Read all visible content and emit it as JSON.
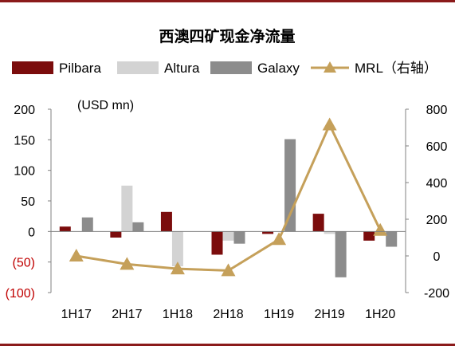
{
  "chart_data": {
    "type": "bar",
    "title": "西澳四矿现金净流量",
    "unit_label": "(USD mn)",
    "categories": [
      "1H17",
      "2H17",
      "1H18",
      "2H18",
      "1H19",
      "2H19",
      "1H20"
    ],
    "left_axis": {
      "ylim": [
        -100,
        200
      ],
      "ticks": [
        "200",
        "150",
        "100",
        "50",
        "0",
        "(50)",
        "(100)"
      ],
      "tick_values": [
        200,
        150,
        100,
        50,
        0,
        -50,
        -100
      ]
    },
    "right_axis": {
      "ylim": [
        -200,
        800
      ],
      "ticks": [
        "800",
        "600",
        "400",
        "200",
        "0",
        "-200"
      ],
      "tick_values": [
        800,
        600,
        400,
        200,
        0,
        -200
      ]
    },
    "series": [
      {
        "name": "Pilbara",
        "type": "bar",
        "axis": "left",
        "color": "#7b0c0c",
        "values": [
          8,
          -10,
          32,
          -38,
          -4,
          29,
          -15
        ]
      },
      {
        "name": "Altura",
        "type": "bar",
        "axis": "left",
        "color": "#d3d3d3",
        "values": [
          0,
          75,
          -57,
          -15,
          0,
          -4,
          0
        ]
      },
      {
        "name": "Galaxy",
        "type": "bar",
        "axis": "left",
        "color": "#8c8c8c",
        "values": [
          23,
          15,
          0,
          -20,
          151,
          -75,
          -25
        ]
      },
      {
        "name": "MRL（右轴）",
        "type": "line",
        "axis": "right",
        "color": "#c5a05a",
        "values": [
          0,
          -45,
          -70,
          -80,
          90,
          715,
          140
        ]
      }
    ],
    "grid": false,
    "legend_position": "top"
  }
}
